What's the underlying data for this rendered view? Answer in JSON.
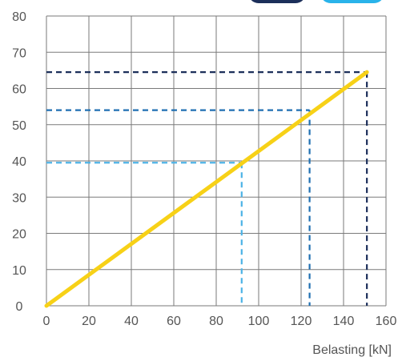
{
  "chart_data": {
    "type": "line",
    "title": "",
    "xlabel": "Belasting [kN]",
    "ylabel": "",
    "xlim": [
      0,
      160
    ],
    "ylim": [
      0,
      80
    ],
    "x_ticks": [
      0,
      20,
      40,
      60,
      80,
      100,
      120,
      140,
      160
    ],
    "y_ticks": [
      0,
      10,
      20,
      30,
      40,
      50,
      60,
      70,
      80
    ],
    "grid": true,
    "series": [
      {
        "x": [
          0,
          151
        ],
        "y": [
          0,
          64.5
        ],
        "color": "#f7d117"
      }
    ],
    "reference_lines": [
      {
        "x": 92,
        "y": 39.5,
        "color": "#4db3e6"
      },
      {
        "x": 124,
        "y": 54,
        "color": "#1f6fb2"
      },
      {
        "x": 151,
        "y": 64.5,
        "color": "#1c2f5a"
      }
    ],
    "legend_chips": [
      {
        "color": "#1c2f5a",
        "label": ""
      },
      {
        "color": "#29b3ea",
        "label": ""
      }
    ]
  }
}
